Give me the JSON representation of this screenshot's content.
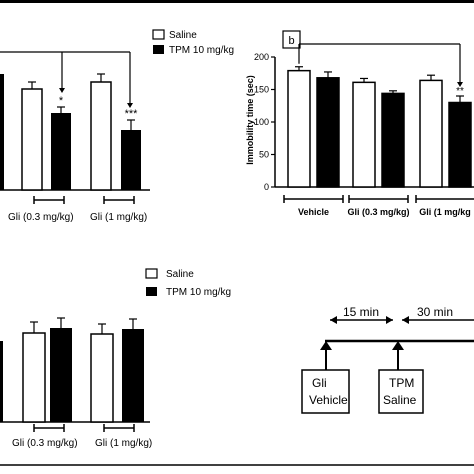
{
  "legend": {
    "saline": "Saline",
    "tpm": "TPM 10 mg/kg"
  },
  "panel_b_label": "b",
  "group_labels": {
    "vehicle": "Vehicle",
    "gli_low": "Gli (0.3 mg/kg)",
    "gli_high": "Gli (1 mg/kg"
  },
  "colors": {
    "saline": "#ffffff",
    "tpm": "#000000",
    "stroke": "#000000"
  },
  "chart_data": [
    {
      "id": "panel-a-partial",
      "type": "bar",
      "categories": [
        "Gli (0.3 mg/kg)",
        "Gli (1 mg/kg)"
      ],
      "series": [
        {
          "name": "Saline",
          "values": [
            null,
            null
          ],
          "errors": [
            null,
            null
          ]
        },
        {
          "name": "TPM 10 mg/kg",
          "values": [
            null,
            null
          ],
          "errors": [
            null,
            null
          ]
        }
      ],
      "annotations": [
        "*",
        "***"
      ]
    },
    {
      "id": "panel-b",
      "type": "bar",
      "ylabel": "Immobility time (sec)",
      "ylim": [
        0,
        200
      ],
      "yticks": [
        0,
        50,
        100,
        150,
        200
      ],
      "categories": [
        "Vehicle",
        "Gli (0.3 mg/kg)",
        "Gli (1 mg/kg"
      ],
      "series": [
        {
          "name": "Saline",
          "values": [
            179,
            161,
            164
          ],
          "errors": [
            6,
            6,
            8
          ]
        },
        {
          "name": "TPM 10 mg/kg",
          "values": [
            168,
            144,
            130
          ],
          "errors": [
            9,
            4,
            10
          ]
        }
      ],
      "annotations": [
        "**"
      ]
    },
    {
      "id": "panel-c-partial",
      "type": "bar",
      "categories": [
        "Gli (0.3 mg/kg)",
        "Gli (1 mg/kg)"
      ],
      "series": [
        {
          "name": "Saline",
          "values": [
            null,
            null
          ],
          "errors": [
            null,
            null
          ]
        },
        {
          "name": "TPM 10 mg/kg",
          "values": [
            null,
            null
          ],
          "errors": [
            null,
            null
          ]
        }
      ]
    }
  ],
  "timeline": {
    "intervals": [
      "15 min",
      "30 min"
    ],
    "events": [
      {
        "line1": "Gli",
        "line2": "Vehicle"
      },
      {
        "line1": "TPM",
        "line2": "Saline"
      }
    ]
  }
}
